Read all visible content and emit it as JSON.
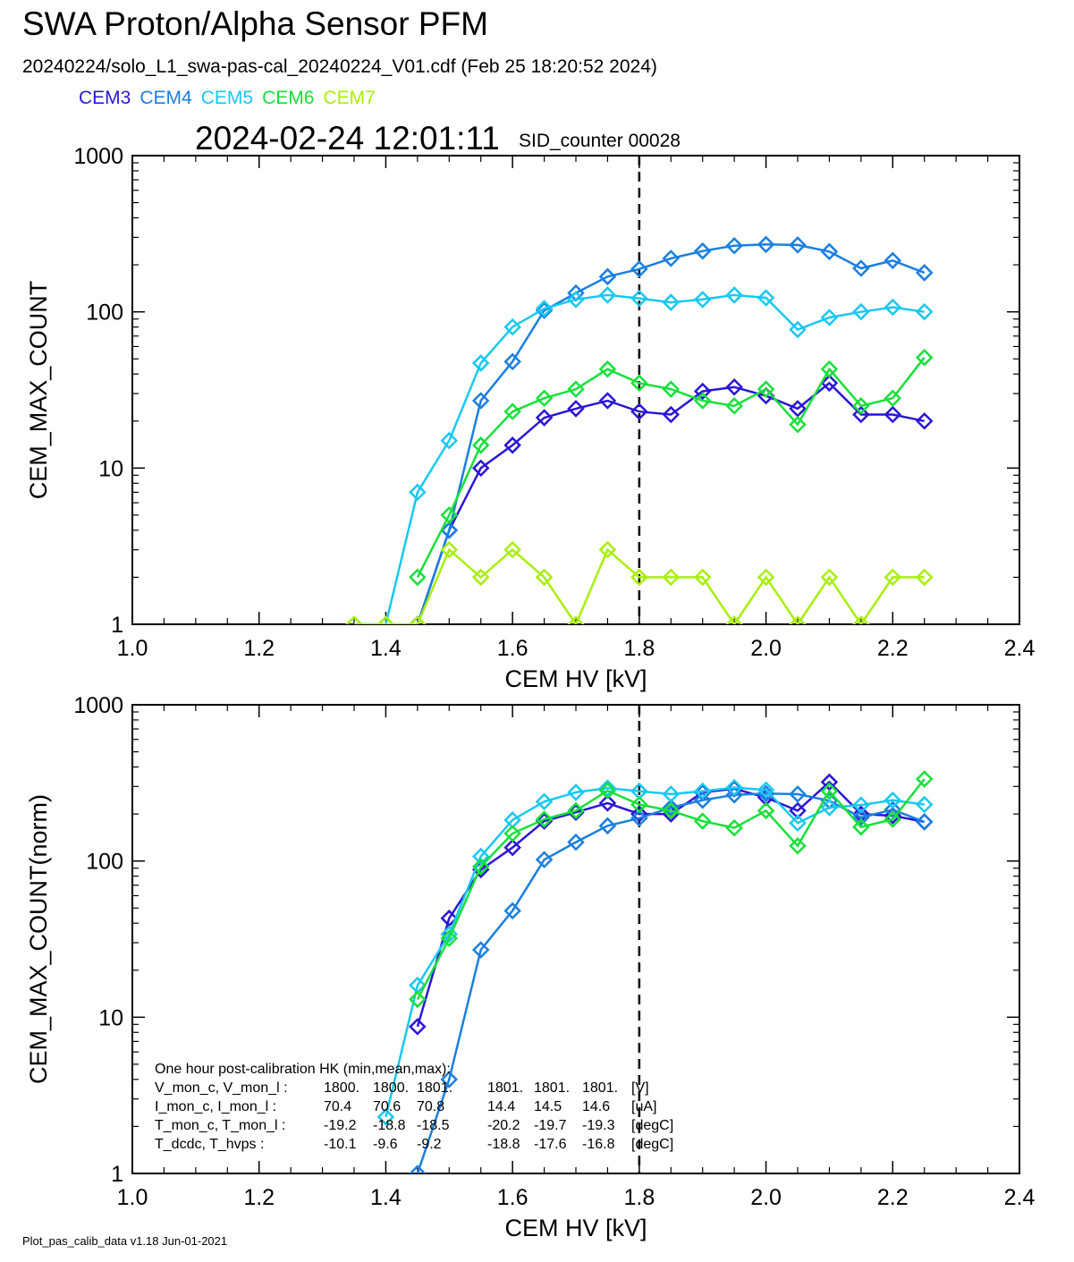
{
  "header": {
    "title": "SWA Proton/Alpha Sensor PFM",
    "subtitle": "20240224/solo_L1_swa-pas-cal_20240224_V01.cdf  (Feb 25 18:20:52 2024)",
    "timestamp": "2024-02-24 12:01:11",
    "sid_counter": "SID_counter 00028"
  },
  "legend": [
    {
      "name": "CEM3",
      "color": "#2a17d6"
    },
    {
      "name": "CEM4",
      "color": "#1a7fe0"
    },
    {
      "name": "CEM5",
      "color": "#19c8f0"
    },
    {
      "name": "CEM6",
      "color": "#18e03a"
    },
    {
      "name": "CEM7",
      "color": "#a8ef0a"
    }
  ],
  "footer": "Plot_pas_calib_data v1.18 Jun-01-2021",
  "reference_line_x": 1.8,
  "hk_text": {
    "heading": "One hour post-calibration HK (min,mean,max):",
    "rows": [
      [
        "V_mon_c, V_mon_l :",
        "1800.",
        "1800.",
        "1801.",
        "1801.",
        "1801.",
        "1801.",
        "[V]"
      ],
      [
        "I_mon_c,  I_mon_l :",
        "70.4",
        "70.6",
        "70.8",
        "14.4",
        "14.5",
        "14.6",
        "[uA]"
      ],
      [
        "T_mon_c, T_mon_l :",
        "-19.2",
        "-18.8",
        "-18.5",
        "-20.2",
        "-19.7",
        "-19.3",
        "[degC]"
      ],
      [
        "T_dcdc,    T_hvps :",
        "-10.1",
        "-9.6",
        "-9.2",
        "-18.8",
        "-17.6",
        "-16.8",
        "[degC]"
      ]
    ]
  },
  "chart_data": [
    {
      "type": "line",
      "xlabel": "CEM HV [kV]",
      "ylabel": "CEM_MAX_COUNT",
      "xlim": [
        1.0,
        2.4
      ],
      "ylim": [
        1,
        1000
      ],
      "yscale": "log",
      "xticks": [
        "1.0",
        "1.2",
        "1.4",
        "1.6",
        "1.8",
        "2.0",
        "2.2",
        "2.4"
      ],
      "yticks": [
        "1",
        "10",
        "100",
        "1000"
      ],
      "series": [
        {
          "name": "CEM3",
          "color": "#2a17d6",
          "x": [
            1.45,
            1.5,
            1.55,
            1.6,
            1.65,
            1.7,
            1.75,
            1.8,
            1.85,
            1.9,
            1.95,
            2.0,
            2.05,
            2.1,
            2.15,
            2.2,
            2.25
          ],
          "y": [
            1,
            4,
            10,
            14,
            21,
            24,
            27,
            23,
            22,
            31,
            33,
            29,
            24,
            35,
            22,
            22,
            20
          ]
        },
        {
          "name": "CEM4",
          "color": "#1a7fe0",
          "x": [
            1.45,
            1.5,
            1.55,
            1.6,
            1.65,
            1.7,
            1.75,
            1.8,
            1.85,
            1.9,
            1.95,
            2.0,
            2.05,
            2.1,
            2.15,
            2.2,
            2.25
          ],
          "y": [
            1,
            4,
            27,
            48,
            102,
            132,
            168,
            188,
            220,
            245,
            265,
            270,
            268,
            243,
            190,
            213,
            178
          ]
        },
        {
          "name": "CEM5",
          "color": "#19c8f0",
          "x": [
            1.35,
            1.4,
            1.45,
            1.5,
            1.55,
            1.6,
            1.65,
            1.7,
            1.75,
            1.8,
            1.85,
            1.9,
            1.95,
            2.0,
            2.05,
            2.1,
            2.15,
            2.2,
            2.25
          ],
          "y": [
            1,
            1,
            7,
            15,
            47,
            80,
            105,
            120,
            128,
            122,
            115,
            120,
            128,
            123,
            77,
            92,
            100,
            107,
            100
          ]
        },
        {
          "name": "CEM6",
          "color": "#18e03a",
          "x": [
            1.45,
            1.5,
            1.55,
            1.6,
            1.65,
            1.7,
            1.75,
            1.8,
            1.85,
            1.9,
            1.95,
            2.0,
            2.05,
            2.1,
            2.15,
            2.2,
            2.25
          ],
          "y": [
            2,
            5,
            14,
            23,
            28,
            32,
            43,
            35,
            32,
            27,
            25,
            32,
            19,
            43,
            25,
            28,
            51
          ]
        },
        {
          "name": "CEM7",
          "color": "#a8ef0a",
          "x": [
            1.35,
            1.4,
            1.45,
            1.5,
            1.55,
            1.6,
            1.65,
            1.7,
            1.75,
            1.8,
            1.85,
            1.9,
            1.95,
            2.0,
            2.05,
            2.1,
            2.15,
            2.2,
            2.25
          ],
          "y": [
            1,
            1,
            1,
            3,
            2,
            3,
            2,
            1,
            3,
            2,
            2,
            2,
            1,
            2,
            1,
            2,
            1,
            2,
            2
          ]
        }
      ]
    },
    {
      "type": "line",
      "xlabel": "CEM HV [kV]",
      "ylabel": "CEM_MAX_COUNT(norm)",
      "xlim": [
        1.0,
        2.4
      ],
      "ylim": [
        1,
        1000
      ],
      "yscale": "log",
      "xticks": [
        "1.0",
        "1.2",
        "1.4",
        "1.6",
        "1.8",
        "2.0",
        "2.2",
        "2.4"
      ],
      "yticks": [
        "1",
        "10",
        "100",
        "1000"
      ],
      "series": [
        {
          "name": "CEM3",
          "color": "#2a17d6",
          "x": [
            1.45,
            1.5,
            1.55,
            1.6,
            1.65,
            1.7,
            1.75,
            1.8,
            1.85,
            1.9,
            1.95,
            2.0,
            2.05,
            2.1,
            2.15,
            2.2,
            2.25
          ],
          "y": [
            8.7,
            43,
            88,
            122,
            180,
            205,
            235,
            200,
            200,
            275,
            290,
            255,
            210,
            320,
            200,
            195,
            178
          ]
        },
        {
          "name": "CEM4",
          "color": "#1a7fe0",
          "x": [
            1.45,
            1.5,
            1.55,
            1.6,
            1.65,
            1.7,
            1.75,
            1.8,
            1.85,
            1.9,
            1.95,
            2.0,
            2.05,
            2.1,
            2.15,
            2.2,
            2.25
          ],
          "y": [
            1,
            4,
            27,
            48,
            102,
            132,
            168,
            188,
            220,
            245,
            265,
            270,
            268,
            243,
            190,
            213,
            178
          ]
        },
        {
          "name": "CEM5",
          "color": "#19c8f0",
          "x": [
            1.4,
            1.45,
            1.5,
            1.55,
            1.6,
            1.65,
            1.7,
            1.75,
            1.8,
            1.85,
            1.9,
            1.95,
            2.0,
            2.05,
            2.1,
            2.15,
            2.2,
            2.25
          ],
          "y": [
            2.3,
            16,
            34,
            107,
            183,
            240,
            275,
            293,
            280,
            268,
            280,
            295,
            285,
            175,
            220,
            228,
            245,
            230
          ]
        },
        {
          "name": "CEM6",
          "color": "#18e03a",
          "x": [
            1.45,
            1.5,
            1.55,
            1.6,
            1.65,
            1.7,
            1.75,
            1.8,
            1.85,
            1.9,
            1.95,
            2.0,
            2.05,
            2.1,
            2.15,
            2.2,
            2.25
          ],
          "y": [
            13,
            32,
            92,
            150,
            185,
            210,
            282,
            230,
            210,
            180,
            163,
            210,
            125,
            280,
            165,
            185,
            335
          ]
        }
      ]
    }
  ]
}
